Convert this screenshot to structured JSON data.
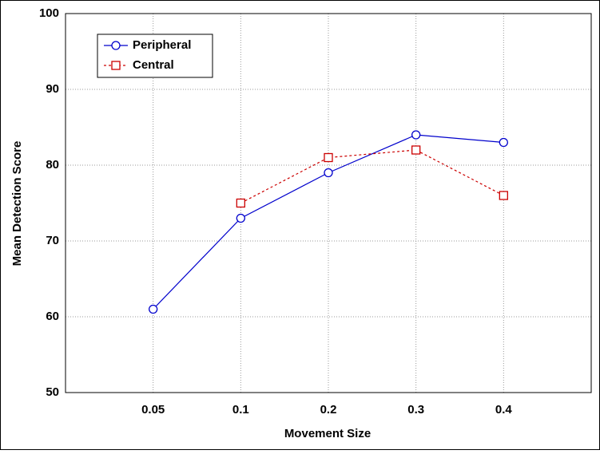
{
  "chart_data": {
    "type": "line",
    "x_label": "Movement Size",
    "y_label": "Mean Detection Score",
    "categories": [
      "0.05",
      "0.1",
      "0.2",
      "0.3",
      "0.4"
    ],
    "series": [
      {
        "name": "Peripheral",
        "color": "#0000cc",
        "marker": "circle",
        "dash": "solid",
        "values": [
          61,
          73,
          79,
          84,
          83
        ]
      },
      {
        "name": "Central",
        "color": "#cc0000",
        "marker": "square",
        "dash": "dashed",
        "values": [
          null,
          75,
          81,
          82,
          76
        ]
      }
    ],
    "ylim": [
      50,
      100
    ],
    "yticks": [
      50,
      60,
      70,
      80,
      90,
      100
    ],
    "grid": true,
    "legend": "upper-left"
  }
}
